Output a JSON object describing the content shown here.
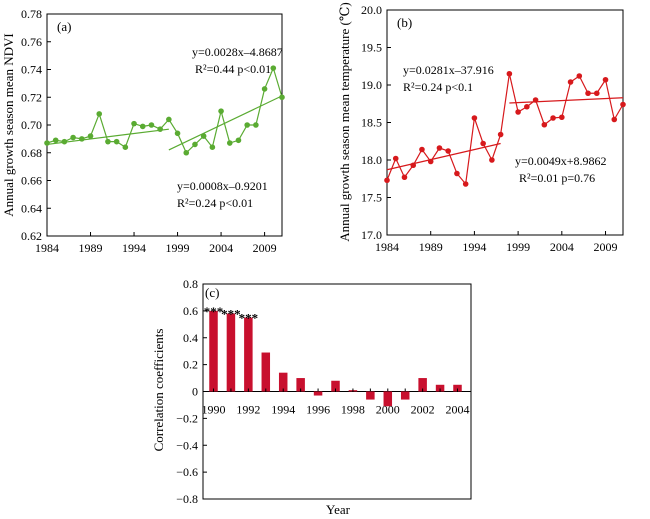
{
  "colors": {
    "green": "#5aab32",
    "red": "#d7191c",
    "bar": "#c8102e"
  },
  "chart_data": [
    {
      "id": "a",
      "type": "line",
      "panel_label": "(a)",
      "ylabel": "Annual growth season mean NDVI",
      "xlabel": "",
      "xlim": [
        1984,
        2011
      ],
      "ylim": [
        0.62,
        0.78
      ],
      "xticks": [
        1984,
        1989,
        1994,
        1999,
        2004,
        2009
      ],
      "xtick_labels": [
        "1984",
        "1989",
        "1994",
        "1999",
        "2004",
        "2009"
      ],
      "yticks": [
        0.62,
        0.64,
        0.66,
        0.68,
        0.7,
        0.72,
        0.74,
        0.76,
        0.78
      ],
      "ytick_labels": [
        "0.62",
        "0.64",
        "0.66",
        "0.68",
        "0.70",
        "0.72",
        "0.74",
        "0.76",
        "0.78"
      ],
      "series": [
        {
          "x": [
            1984,
            1985,
            1986,
            1987,
            1988,
            1989,
            1990,
            1991,
            1992,
            1993,
            1994,
            1995,
            1996,
            1997,
            1998,
            1999,
            2000,
            2001,
            2002,
            2003,
            2004,
            2005,
            2006,
            2007,
            2008,
            2009,
            2010,
            2011
          ],
          "y": [
            0.687,
            0.689,
            0.688,
            0.691,
            0.69,
            0.692,
            0.708,
            0.688,
            0.688,
            0.684,
            0.701,
            0.699,
            0.7,
            0.697,
            0.704,
            0.694,
            0.68,
            0.686,
            0.692,
            0.684,
            0.71,
            0.687,
            0.689,
            0.7,
            0.7,
            0.726,
            0.741,
            0.72
          ]
        }
      ],
      "trendlines": [
        {
          "x": [
            1984,
            1998
          ],
          "y": [
            0.686,
            0.697
          ]
        },
        {
          "x": [
            1998,
            2011
          ],
          "y": [
            0.682,
            0.721
          ]
        }
      ],
      "annotations": [
        {
          "lines": [
            "y=0.0028x–4.8687",
            "R²=0.44 p<0.01"
          ]
        },
        {
          "lines": [
            "y=0.0008x–0.9201",
            "R²=0.24 p<0.01"
          ]
        }
      ]
    },
    {
      "id": "b",
      "type": "line",
      "panel_label": "(b)",
      "ylabel": "Annual growth season mean temperature (℃)",
      "xlabel": "",
      "xlim": [
        1984,
        2011
      ],
      "ylim": [
        17.0,
        20.0
      ],
      "xticks": [
        1984,
        1989,
        1994,
        1999,
        2004,
        2009
      ],
      "xtick_labels": [
        "1984",
        "1989",
        "1994",
        "1999",
        "2004",
        "2009"
      ],
      "yticks": [
        17.0,
        17.5,
        18.0,
        18.5,
        19.0,
        19.5,
        20.0
      ],
      "ytick_labels": [
        "17.0",
        "17.5",
        "18.0",
        "18.5",
        "19.0",
        "19.5",
        "20.0"
      ],
      "series": [
        {
          "x": [
            1984,
            1985,
            1986,
            1987,
            1988,
            1989,
            1990,
            1991,
            1992,
            1993,
            1994,
            1995,
            1996,
            1997,
            1998,
            1999,
            2000,
            2001,
            2002,
            2003,
            2004,
            2005,
            2006,
            2007,
            2008,
            2009,
            2010,
            2011
          ],
          "y": [
            17.73,
            18.02,
            17.77,
            17.93,
            18.14,
            17.98,
            18.16,
            18.12,
            17.82,
            17.68,
            18.56,
            18.22,
            18.0,
            18.34,
            19.15,
            18.64,
            18.71,
            18.8,
            18.47,
            18.56,
            18.57,
            19.04,
            19.12,
            18.89,
            18.89,
            19.07,
            18.54,
            18.74
          ]
        }
      ],
      "trendlines": [
        {
          "x": [
            1984,
            1997
          ],
          "y": [
            17.87,
            18.22
          ]
        },
        {
          "x": [
            1998,
            2011
          ],
          "y": [
            18.76,
            18.83
          ]
        }
      ],
      "annotations": [
        {
          "lines": [
            "y=0.0281x–37.916",
            "R²=0.24 p<0.1"
          ]
        },
        {
          "lines": [
            "y=0.0049x+8.9862",
            "R²=0.01 p=0.76"
          ]
        }
      ]
    },
    {
      "id": "c",
      "type": "bar",
      "panel_label": "(c)",
      "ylabel": "Correlation coefficients",
      "xlabel": "Year",
      "ylim": [
        -0.8,
        0.8
      ],
      "categories": [
        1990,
        1991,
        1992,
        1993,
        1994,
        1995,
        1996,
        1997,
        1998,
        1999,
        2000,
        2001,
        2002,
        2003,
        2004
      ],
      "values": [
        0.6,
        0.58,
        0.55,
        0.29,
        0.14,
        0.1,
        -0.03,
        0.08,
        0.01,
        -0.06,
        -0.11,
        -0.06,
        0.1,
        0.05,
        0.05
      ],
      "xtick_labels": [
        "1990",
        "1992",
        "1994",
        "1996",
        "1998",
        "2000",
        "2002",
        "2004"
      ],
      "xtick_values": [
        1990,
        1992,
        1994,
        1996,
        1998,
        2000,
        2002,
        2004
      ],
      "yticks": [
        -0.8,
        -0.6,
        -0.4,
        -0.2,
        0,
        0.2,
        0.4,
        0.6,
        0.8
      ],
      "ytick_labels": [
        "−0.8",
        "−0.6",
        "−0.4",
        "−0.2",
        "0",
        "0.2",
        "0.4",
        "0.6",
        "0.8"
      ],
      "significance": [
        {
          "category": 1990,
          "label": "***"
        },
        {
          "category": 1991,
          "label": "***"
        },
        {
          "category": 1992,
          "label": "***"
        }
      ]
    }
  ]
}
